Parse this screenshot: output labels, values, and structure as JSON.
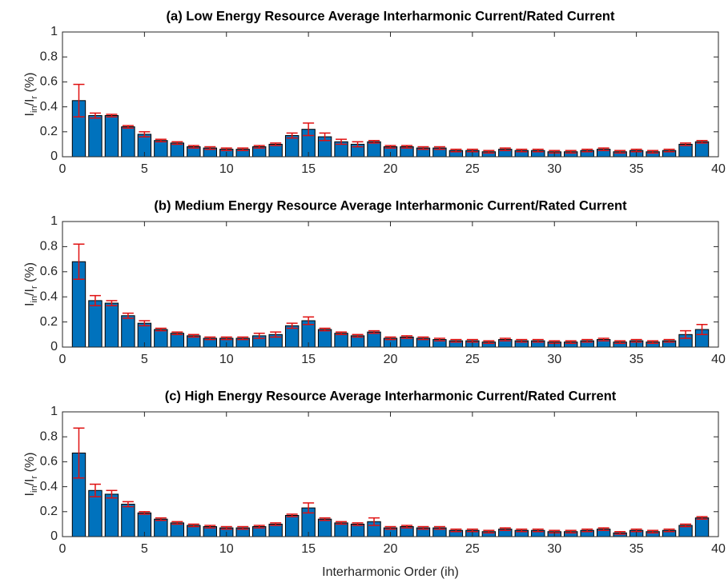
{
  "chart_data": [
    {
      "type": "bar",
      "title": "(a) Low Energy Resource Average Interharmonic Current/Rated Current",
      "ylabel": [
        "I",
        "in",
        "/I",
        "r",
        " (%)"
      ],
      "x": [
        1,
        2,
        3,
        4,
        5,
        6,
        7,
        8,
        9,
        10,
        11,
        12,
        13,
        14,
        15,
        16,
        17,
        18,
        19,
        20,
        21,
        22,
        23,
        24,
        25,
        26,
        27,
        28,
        29,
        30,
        31,
        32,
        33,
        34,
        35,
        36,
        37,
        38,
        39
      ],
      "values": [
        0.45,
        0.33,
        0.33,
        0.24,
        0.18,
        0.13,
        0.11,
        0.08,
        0.07,
        0.06,
        0.06,
        0.08,
        0.1,
        0.17,
        0.22,
        0.16,
        0.12,
        0.1,
        0.12,
        0.08,
        0.08,
        0.07,
        0.07,
        0.05,
        0.05,
        0.04,
        0.06,
        0.05,
        0.05,
        0.04,
        0.04,
        0.05,
        0.06,
        0.04,
        0.05,
        0.04,
        0.05,
        0.1,
        0.12
      ],
      "errors": [
        0.13,
        0.02,
        0.01,
        0.01,
        0.02,
        0.01,
        0.01,
        0.01,
        0.01,
        0.01,
        0.01,
        0.01,
        0.01,
        0.02,
        0.05,
        0.03,
        0.02,
        0.02,
        0.01,
        0.01,
        0.01,
        0.01,
        0.01,
        0.01,
        0.01,
        0.01,
        0.01,
        0.01,
        0.01,
        0.01,
        0.01,
        0.01,
        0.01,
        0.01,
        0.01,
        0.01,
        0.01,
        0.01,
        0.01
      ],
      "color": "#0072bd",
      "error_color": "#e01010",
      "xlim": [
        0,
        40
      ],
      "xticks": [
        0,
        5,
        10,
        15,
        20,
        25,
        30,
        35,
        40
      ],
      "ylim": [
        0,
        1
      ],
      "yticks": [
        0,
        0.2,
        0.4,
        0.6,
        0.8,
        1
      ]
    },
    {
      "type": "bar",
      "title": "(b) Medium Energy Resource Average Interharmonic Current/Rated Current",
      "ylabel": [
        "I",
        "in",
        "/I",
        "r",
        " (%)"
      ],
      "x": [
        1,
        2,
        3,
        4,
        5,
        6,
        7,
        8,
        9,
        10,
        11,
        12,
        13,
        14,
        15,
        16,
        17,
        18,
        19,
        20,
        21,
        22,
        23,
        24,
        25,
        26,
        27,
        28,
        29,
        30,
        31,
        32,
        33,
        34,
        35,
        36,
        37,
        38,
        39
      ],
      "values": [
        0.68,
        0.37,
        0.35,
        0.25,
        0.19,
        0.14,
        0.11,
        0.09,
        0.07,
        0.07,
        0.07,
        0.09,
        0.1,
        0.17,
        0.21,
        0.14,
        0.11,
        0.09,
        0.12,
        0.07,
        0.08,
        0.07,
        0.06,
        0.05,
        0.05,
        0.04,
        0.06,
        0.05,
        0.05,
        0.04,
        0.04,
        0.05,
        0.06,
        0.04,
        0.05,
        0.04,
        0.05,
        0.1,
        0.14
      ],
      "errors": [
        0.14,
        0.04,
        0.02,
        0.02,
        0.02,
        0.01,
        0.01,
        0.01,
        0.01,
        0.01,
        0.01,
        0.02,
        0.02,
        0.02,
        0.03,
        0.01,
        0.01,
        0.01,
        0.01,
        0.01,
        0.01,
        0.01,
        0.01,
        0.01,
        0.01,
        0.01,
        0.01,
        0.01,
        0.01,
        0.01,
        0.01,
        0.01,
        0.01,
        0.01,
        0.01,
        0.01,
        0.01,
        0.03,
        0.04
      ],
      "color": "#0072bd",
      "error_color": "#e01010",
      "xlim": [
        0,
        40
      ],
      "xticks": [
        0,
        5,
        10,
        15,
        20,
        25,
        30,
        35,
        40
      ],
      "ylim": [
        0,
        1
      ],
      "yticks": [
        0,
        0.2,
        0.4,
        0.6,
        0.8,
        1
      ]
    },
    {
      "type": "bar",
      "title": "(c) High Energy Resource Average Interharmonic Current/Rated Current",
      "ylabel": [
        "I",
        "in",
        "/I",
        "r",
        " (%)"
      ],
      "xlabel": "Interharmonic Order (ih)",
      "x": [
        1,
        2,
        3,
        4,
        5,
        6,
        7,
        8,
        9,
        10,
        11,
        12,
        13,
        14,
        15,
        16,
        17,
        18,
        19,
        20,
        21,
        22,
        23,
        24,
        25,
        26,
        27,
        28,
        29,
        30,
        31,
        32,
        33,
        34,
        35,
        36,
        37,
        38,
        39
      ],
      "values": [
        0.67,
        0.37,
        0.34,
        0.26,
        0.19,
        0.14,
        0.11,
        0.09,
        0.08,
        0.07,
        0.07,
        0.08,
        0.1,
        0.17,
        0.23,
        0.14,
        0.11,
        0.1,
        0.12,
        0.07,
        0.08,
        0.07,
        0.07,
        0.05,
        0.05,
        0.04,
        0.06,
        0.05,
        0.05,
        0.04,
        0.04,
        0.05,
        0.06,
        0.03,
        0.05,
        0.04,
        0.05,
        0.09,
        0.15
      ],
      "errors": [
        0.2,
        0.05,
        0.03,
        0.02,
        0.01,
        0.01,
        0.01,
        0.01,
        0.01,
        0.01,
        0.01,
        0.01,
        0.01,
        0.01,
        0.04,
        0.01,
        0.01,
        0.01,
        0.03,
        0.01,
        0.01,
        0.01,
        0.01,
        0.01,
        0.01,
        0.01,
        0.01,
        0.01,
        0.01,
        0.01,
        0.01,
        0.01,
        0.01,
        0.01,
        0.01,
        0.01,
        0.01,
        0.01,
        0.01
      ],
      "color": "#0072bd",
      "error_color": "#e01010",
      "xlim": [
        0,
        40
      ],
      "xticks": [
        0,
        5,
        10,
        15,
        20,
        25,
        30,
        35,
        40
      ],
      "ylim": [
        0,
        1
      ],
      "yticks": [
        0,
        0.2,
        0.4,
        0.6,
        0.8,
        1
      ]
    }
  ]
}
